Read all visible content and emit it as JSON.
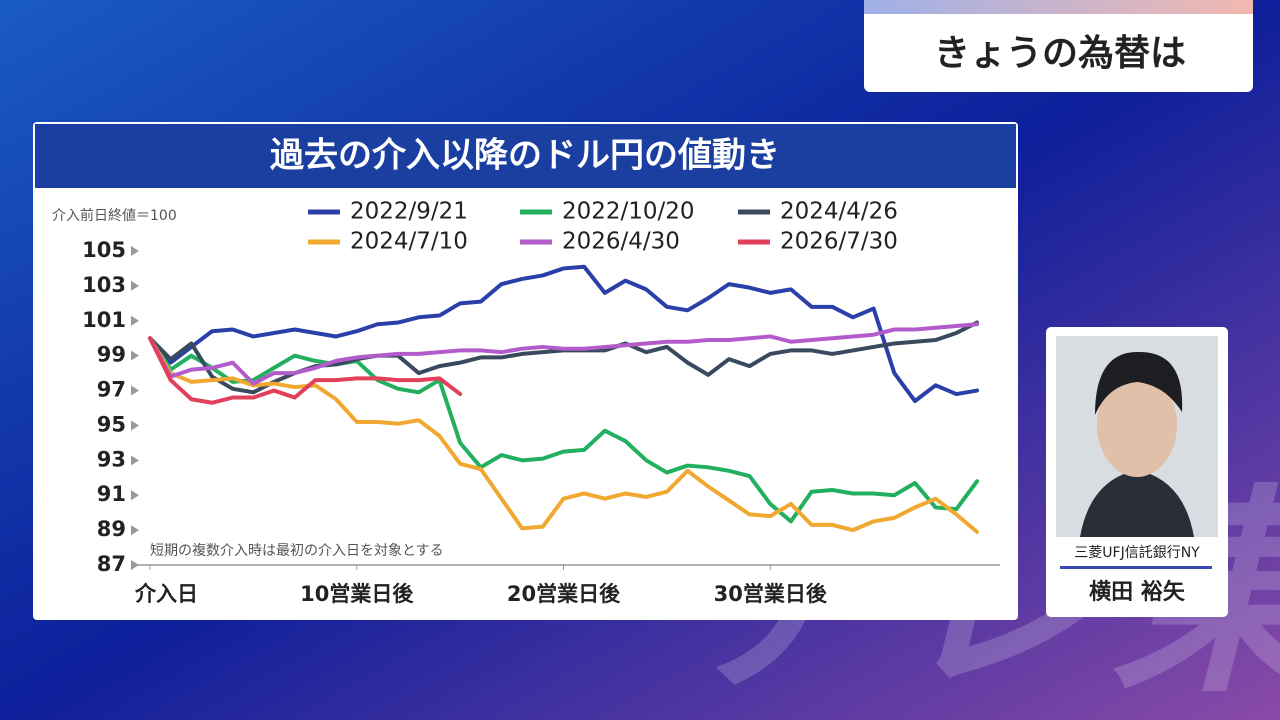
{
  "header": {
    "title": "きょうの為替は"
  },
  "watermark": "テレ東",
  "chart_data": {
    "type": "line",
    "title": "過去の介入以降のドル円の値動き",
    "subtitle": "介入前日終値＝100",
    "note": "短期の複数介入時は最初の介入日を対象とする",
    "x": [
      0,
      1,
      2,
      3,
      4,
      5,
      6,
      7,
      8,
      9,
      10,
      11,
      12,
      13,
      14,
      15,
      16,
      17,
      18,
      19,
      20,
      21,
      22,
      23,
      24,
      25,
      26,
      27,
      28,
      29,
      30,
      31,
      32,
      33,
      34,
      35,
      36,
      37,
      38,
      39,
      40
    ],
    "xlim": [
      0,
      40
    ],
    "xticks": [
      {
        "value": 0,
        "label": "介入日"
      },
      {
        "value": 10,
        "label": "10営業日後"
      },
      {
        "value": 20,
        "label": "20営業日後"
      },
      {
        "value": 30,
        "label": "30営業日後"
      }
    ],
    "ylim": [
      87,
      105
    ],
    "yticks": [
      87,
      89,
      91,
      93,
      95,
      97,
      99,
      101,
      103,
      105
    ],
    "grid": false,
    "series": [
      {
        "name": "2022/9/21",
        "color": "#2b3fa8",
        "values": [
          100,
          98.6,
          99.5,
          100.4,
          100.5,
          100.1,
          100.3,
          100.5,
          100.3,
          100.1,
          100.4,
          100.8,
          100.9,
          101.2,
          101.3,
          102,
          102.1,
          103.1,
          103.4,
          103.6,
          104,
          104.1,
          102.6,
          103.3,
          102.8,
          101.8,
          101.6,
          102.3,
          103.1,
          102.9,
          102.6,
          102.8,
          101.8,
          101.8,
          101.2,
          101.7,
          98,
          96.4,
          97.3,
          96.8,
          97
        ]
      },
      {
        "name": "2022/10/20",
        "color": "#22b060",
        "values": [
          100,
          98.2,
          99,
          98.3,
          97.5,
          97.6,
          98.3,
          99,
          98.7,
          98.5,
          98.7,
          97.6,
          97.1,
          96.9,
          97.6,
          94,
          92.6,
          93.3,
          93,
          93.1,
          93.5,
          93.6,
          94.7,
          94.1,
          93,
          92.3,
          92.7,
          92.6,
          92.4,
          92.1,
          90.5,
          89.5,
          91.2,
          91.3,
          91.1,
          91.1,
          91,
          91.7,
          90.3,
          90.2,
          91.8
        ]
      },
      {
        "name": "2024/4/26",
        "color": "#3a4a5e",
        "values": [
          100,
          98.8,
          99.7,
          97.8,
          97.1,
          96.9,
          97.5,
          98,
          98.4,
          98.5,
          98.8,
          99,
          99,
          98,
          98.4,
          98.6,
          98.9,
          98.9,
          99.1,
          99.2,
          99.3,
          99.3,
          99.3,
          99.7,
          99.2,
          99.5,
          98.6,
          97.9,
          98.8,
          98.4,
          99.1,
          99.3,
          99.3,
          99.1,
          99.3,
          99.5,
          99.7,
          99.8,
          99.9,
          100.3,
          100.9
        ]
      },
      {
        "name": "2024/7/10",
        "color": "#f0a830",
        "values": [
          100,
          98,
          97.5,
          97.6,
          97.7,
          97.3,
          97.4,
          97.2,
          97.3,
          96.5,
          95.2,
          95.2,
          95.1,
          95.3,
          94.4,
          92.8,
          92.5,
          90.8,
          89.1,
          89.2,
          90.8,
          91.1,
          90.8,
          91.1,
          90.9,
          91.2,
          92.4,
          91.5,
          90.7,
          89.9,
          89.8,
          90.5,
          89.3,
          89.3,
          89,
          89.5,
          89.7,
          90.3,
          90.8,
          89.9,
          88.9
        ]
      },
      {
        "name": "2026/4/30",
        "color": "#b25ccc",
        "values": [
          100,
          97.8,
          98.2,
          98.3,
          98.6,
          97.4,
          98,
          98,
          98.3,
          98.7,
          98.9,
          99,
          99.1,
          99.1,
          99.2,
          99.3,
          99.3,
          99.2,
          99.4,
          99.5,
          99.4,
          99.4,
          99.5,
          99.6,
          99.7,
          99.8,
          99.8,
          99.9,
          99.9,
          100,
          100.1,
          99.8,
          99.9,
          100,
          100.1,
          100.2,
          100.5,
          100.5,
          100.6,
          100.7,
          100.8
        ]
      },
      {
        "name": "2026/7/30",
        "color": "#e0405a",
        "values": [
          100,
          97.6,
          96.5,
          96.3,
          96.6,
          96.6,
          97,
          96.6,
          97.6,
          97.6,
          97.7,
          97.7,
          97.6,
          97.6,
          97.7,
          96.8,
          null,
          null,
          null,
          null,
          null,
          null,
          null,
          null,
          null,
          null,
          null,
          null,
          null,
          null,
          null,
          null,
          null,
          null,
          null,
          null,
          null,
          null,
          null,
          null,
          null
        ]
      }
    ]
  },
  "guest": {
    "affiliation": "三菱UFJ信託銀行NY",
    "name": "横田 裕矢"
  }
}
